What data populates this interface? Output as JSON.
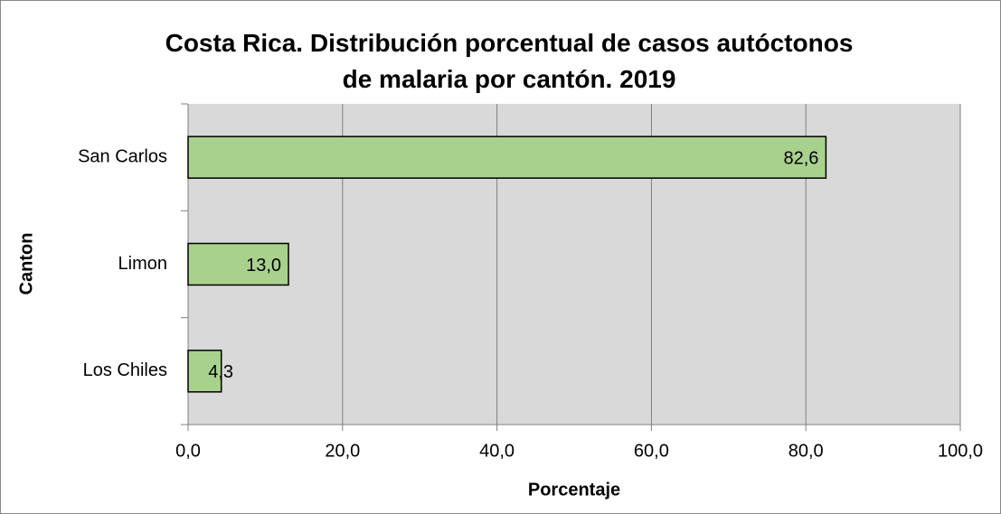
{
  "chart_data": {
    "type": "hbar",
    "title": "Costa Rica. Distribución porcentual de casos autóctonos de malaria por cantón. 2019",
    "categories": [
      "San Carlos",
      "Limon",
      "Los Chiles"
    ],
    "values": [
      82.6,
      13.0,
      4.3
    ],
    "value_labels": [
      "82,6",
      "13,0",
      "4,3"
    ],
    "color": "#a9d18e",
    "xlim": [
      0,
      100
    ],
    "xticks": [
      {
        "value": 0,
        "label": "0,0"
      },
      {
        "value": 20,
        "label": "20,0"
      },
      {
        "value": 40,
        "label": "40,0"
      },
      {
        "value": 60,
        "label": "60,0"
      },
      {
        "value": 80,
        "label": "80,0"
      },
      {
        "value": 100,
        "label": "100,0"
      }
    ],
    "xlabel": "Porcentaje",
    "ylabel": "Canton",
    "grid": true
  }
}
